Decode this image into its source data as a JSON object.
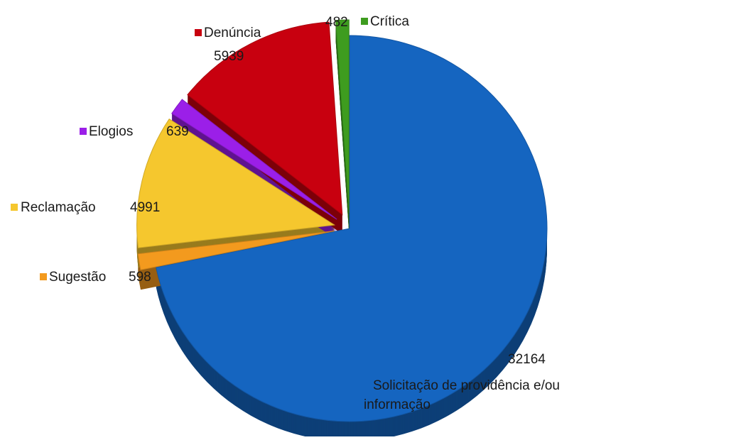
{
  "chart_data": {
    "type": "pie",
    "title": "",
    "legend_style": "labels-beside-slices",
    "three_d": true,
    "exploded": true,
    "slices": [
      {
        "label": "Solicitação de providência e/ou informação",
        "label_lines": [
          "Solicitação de providência e/ou",
          "informação"
        ],
        "value": 32164,
        "value_text": "32164",
        "color": "#1565c0"
      },
      {
        "label": "Sugestão",
        "label_lines": [
          "Sugestão"
        ],
        "value": 598,
        "value_text": "598",
        "color": "#f39a1e"
      },
      {
        "label": "Reclamação",
        "label_lines": [
          "Reclamação"
        ],
        "value": 4991,
        "value_text": "4991",
        "color": "#f5c72e"
      },
      {
        "label": "Elogios",
        "label_lines": [
          "Elogios"
        ],
        "value": 639,
        "value_text": "639",
        "color": "#9b1fe8"
      },
      {
        "label": "Denúncia",
        "label_lines": [
          "Denúncia"
        ],
        "value": 5939,
        "value_text": "5939",
        "color": "#c8000f"
      },
      {
        "label": "Crítica",
        "label_lines": [
          "Crítica"
        ],
        "value": 482,
        "value_text": "482",
        "color": "#3e9c1f"
      }
    ]
  }
}
